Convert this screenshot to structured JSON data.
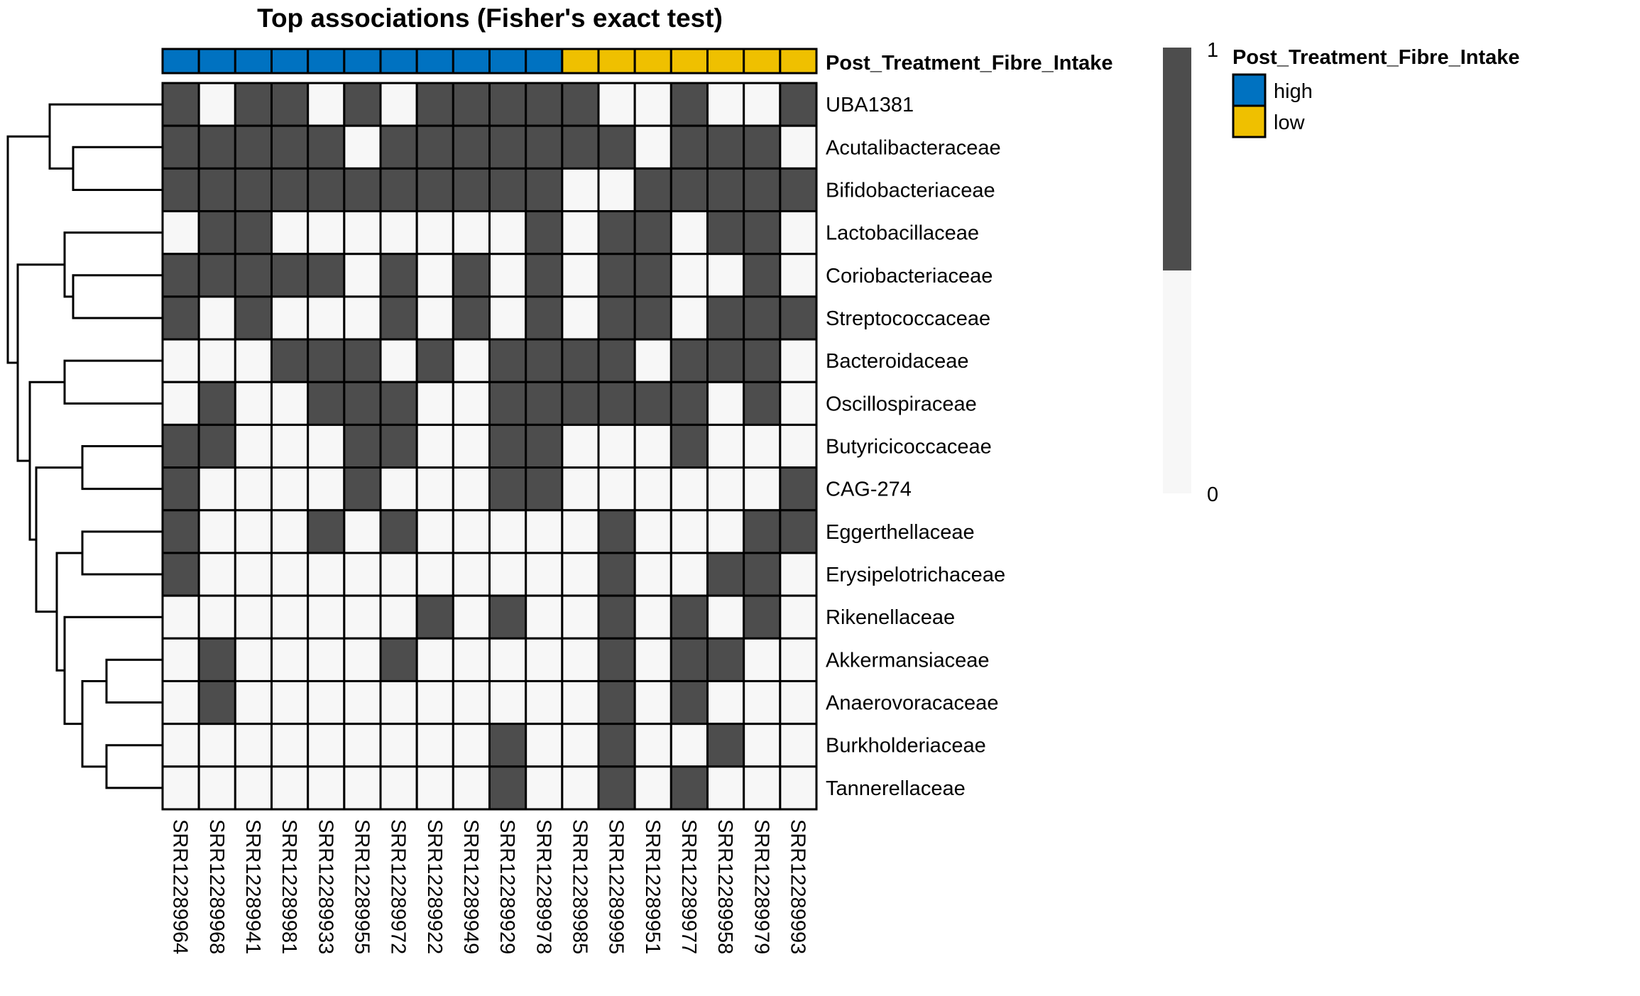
{
  "chart_data": {
    "type": "heatmap",
    "title": "Top associations (Fisher's exact test)",
    "columns": [
      "SRR12289964",
      "SRR12289968",
      "SRR12289941",
      "SRR12289981",
      "SRR12289933",
      "SRR12289955",
      "SRR12289972",
      "SRR12289922",
      "SRR12289949",
      "SRR12289929",
      "SRR12289978",
      "SRR12289985",
      "SRR12289995",
      "SRR12289951",
      "SRR12289977",
      "SRR12289958",
      "SRR12289979",
      "SRR12289993"
    ],
    "rows": [
      "UBA1381",
      "Acutalibacteraceae",
      "Bifidobacteriaceae",
      "Lactobacillaceae",
      "Coriobacteriaceae",
      "Streptococcaceae",
      "Bacteroidaceae",
      "Oscillospiraceae",
      "Butyricicoccaceae",
      "CAG-274",
      "Eggerthellaceae",
      "Erysipelotrichaceae",
      "Rikenellaceae",
      "Akkermansiaceae",
      "Anaerovoracaceae",
      "Burkholderiaceae",
      "Tannerellaceae"
    ],
    "values": [
      [
        1,
        0,
        1,
        1,
        0,
        1,
        0,
        1,
        1,
        1,
        1,
        1,
        0,
        0,
        1,
        0,
        0,
        1
      ],
      [
        1,
        1,
        1,
        1,
        1,
        0,
        1,
        1,
        1,
        1,
        1,
        1,
        1,
        0,
        1,
        1,
        1,
        0
      ],
      [
        1,
        1,
        1,
        1,
        1,
        1,
        1,
        1,
        1,
        1,
        1,
        0,
        0,
        1,
        1,
        1,
        1,
        1
      ],
      [
        0,
        1,
        1,
        0,
        0,
        0,
        0,
        0,
        0,
        0,
        1,
        0,
        1,
        1,
        0,
        1,
        1,
        0
      ],
      [
        1,
        1,
        1,
        1,
        1,
        0,
        1,
        0,
        1,
        0,
        1,
        0,
        1,
        1,
        0,
        0,
        1,
        0
      ],
      [
        1,
        0,
        1,
        0,
        0,
        0,
        1,
        0,
        1,
        0,
        1,
        0,
        1,
        1,
        0,
        1,
        1,
        1
      ],
      [
        0,
        0,
        0,
        1,
        1,
        1,
        0,
        1,
        0,
        1,
        1,
        1,
        1,
        0,
        1,
        1,
        1,
        0
      ],
      [
        0,
        1,
        0,
        0,
        1,
        1,
        1,
        0,
        0,
        1,
        1,
        1,
        1,
        1,
        1,
        0,
        1,
        0
      ],
      [
        1,
        1,
        0,
        0,
        0,
        1,
        1,
        0,
        0,
        1,
        1,
        0,
        0,
        0,
        1,
        0,
        0,
        0
      ],
      [
        1,
        0,
        0,
        0,
        0,
        1,
        0,
        0,
        0,
        1,
        1,
        0,
        0,
        0,
        0,
        0,
        0,
        1
      ],
      [
        1,
        0,
        0,
        0,
        1,
        0,
        1,
        0,
        0,
        0,
        0,
        0,
        1,
        0,
        0,
        0,
        1,
        1
      ],
      [
        1,
        0,
        0,
        0,
        0,
        0,
        0,
        0,
        0,
        0,
        0,
        0,
        1,
        0,
        0,
        1,
        1,
        0
      ],
      [
        0,
        0,
        0,
        0,
        0,
        0,
        0,
        1,
        0,
        1,
        0,
        0,
        1,
        0,
        1,
        0,
        1,
        0
      ],
      [
        0,
        1,
        0,
        0,
        0,
        0,
        1,
        0,
        0,
        0,
        0,
        0,
        1,
        0,
        1,
        1,
        0,
        0
      ],
      [
        0,
        1,
        0,
        0,
        0,
        0,
        0,
        0,
        0,
        0,
        0,
        0,
        1,
        0,
        1,
        0,
        0,
        0
      ],
      [
        0,
        0,
        0,
        0,
        0,
        0,
        0,
        0,
        0,
        1,
        0,
        0,
        1,
        0,
        0,
        1,
        0,
        0
      ],
      [
        0,
        0,
        0,
        0,
        0,
        0,
        0,
        0,
        0,
        1,
        0,
        0,
        1,
        0,
        1,
        0,
        0,
        0
      ]
    ],
    "annotation": {
      "name": "Post_Treatment_Fibre_Intake",
      "values": [
        "high",
        "high",
        "high",
        "high",
        "high",
        "high",
        "high",
        "high",
        "high",
        "high",
        "high",
        "low",
        "low",
        "low",
        "low",
        "low",
        "low",
        "low"
      ],
      "levels": [
        {
          "label": "high",
          "color": "#0072C1"
        },
        {
          "label": "low",
          "color": "#EFC000"
        }
      ]
    },
    "colorbar": {
      "max_label": "1",
      "min_label": "0",
      "range": [
        0,
        1
      ],
      "colors": {
        "1": "#4D4D4D",
        "0": "#F7F7F7"
      }
    },
    "row_dendrogram": true,
    "grid": true
  }
}
